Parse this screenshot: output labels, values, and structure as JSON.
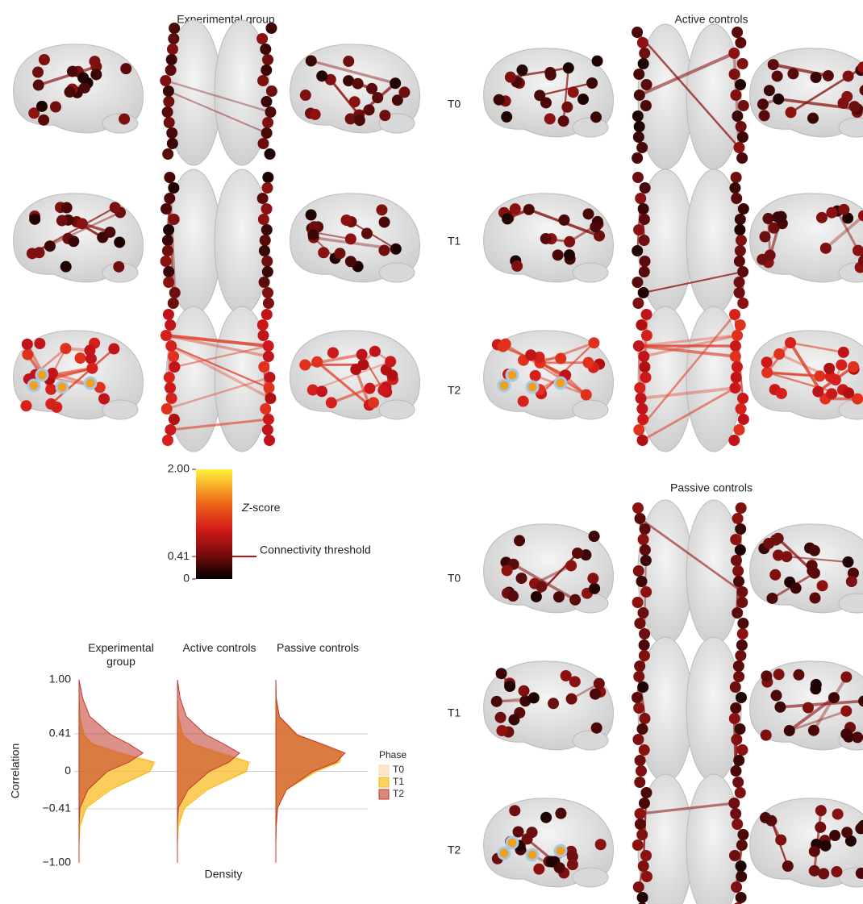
{
  "panels": {
    "experimental": "Experimental group",
    "active": "Active controls",
    "passive": "Passive controls"
  },
  "active_phases": [
    "T0",
    "T1",
    "T2"
  ],
  "passive_phases": [
    "T0",
    "T1",
    "T2"
  ],
  "colorbar": {
    "label_z": "Z",
    "label_rest": "-score",
    "range": [
      0,
      2
    ],
    "ticks": [
      {
        "value": 2,
        "label": "2.00"
      },
      0.41,
      0
    ],
    "threshold": 0.41,
    "threshold_label": "Connectivity threshold"
  },
  "chart_data": {
    "type": "density",
    "ylabel": "Correlation",
    "xlabel": "Density",
    "groups": [
      "Experimental group",
      "Active controls",
      "Passive controls"
    ],
    "ylim": [
      -1,
      1
    ],
    "yticks": [
      {
        "value": 1,
        "label": "1.00"
      },
      0.41,
      0,
      {
        "value": -0.41,
        "label": "−0.41"
      },
      {
        "value": -1,
        "label": "−1.00"
      }
    ],
    "xlim": [
      0,
      5
    ],
    "y_points": [
      -1,
      -0.8,
      -0.6,
      -0.4,
      -0.2,
      0,
      0.1,
      0.2,
      0.3,
      0.4,
      0.6,
      0.8,
      1
    ],
    "legend_title": "Phase",
    "series": [
      {
        "name": "T0",
        "color": "#fdd3a8",
        "values": [
          [
            0,
            0,
            0.05,
            0.3,
            1.6,
            4.0,
            4.3,
            2.5,
            0.8,
            0.3,
            0.05,
            0,
            0
          ],
          [
            0,
            0,
            0.05,
            0.3,
            1.5,
            3.8,
            4.1,
            2.6,
            0.9,
            0.3,
            0.05,
            0,
            0
          ],
          [
            0,
            0,
            0.02,
            0.1,
            0.6,
            2.2,
            3.5,
            3.8,
            2.5,
            1.2,
            0.2,
            0.02,
            0
          ]
        ]
      },
      {
        "name": "T1",
        "color": "#f5b800",
        "values": [
          [
            0,
            0,
            0.05,
            0.4,
            1.8,
            4.0,
            4.2,
            2.2,
            0.7,
            0.25,
            0.05,
            0,
            0
          ],
          [
            0,
            0,
            0.05,
            0.4,
            1.7,
            3.9,
            4.0,
            2.3,
            0.8,
            0.3,
            0.05,
            0,
            0
          ],
          [
            0,
            0,
            0.02,
            0.1,
            0.6,
            2.3,
            3.6,
            3.7,
            2.4,
            1.1,
            0.2,
            0.02,
            0
          ]
        ]
      },
      {
        "name": "T2",
        "color": "#c0392b",
        "values": [
          [
            0,
            0,
            0,
            0.05,
            0.5,
            1.6,
            2.8,
            3.6,
            2.8,
            1.8,
            0.6,
            0.2,
            0
          ],
          [
            0,
            0,
            0,
            0.05,
            0.6,
            1.8,
            2.9,
            3.5,
            2.6,
            1.6,
            0.5,
            0.15,
            0
          ],
          [
            0,
            0,
            0.02,
            0.1,
            0.6,
            2.1,
            3.4,
            3.9,
            2.6,
            1.2,
            0.2,
            0.02,
            0
          ]
        ]
      }
    ]
  }
}
